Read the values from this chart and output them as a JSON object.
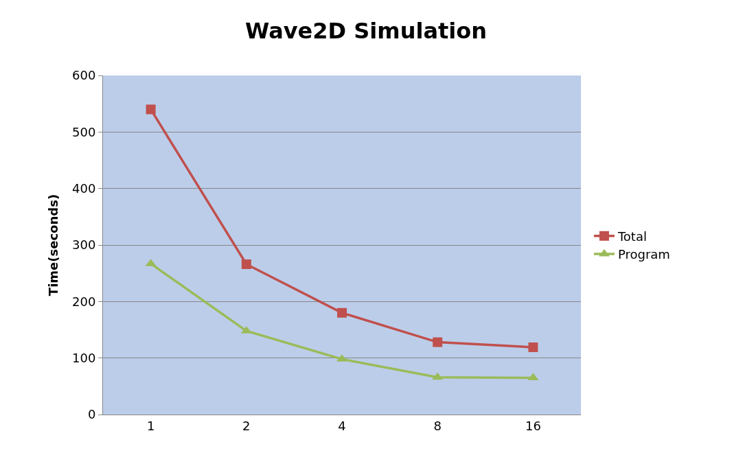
{
  "chart_data": {
    "type": "line",
    "title": "Wave2D Simulation",
    "ylabel": "Time(seconds)",
    "categories": [
      "1",
      "2",
      "4",
      "8",
      "16"
    ],
    "series": [
      {
        "name": "Total",
        "color": "#c0504d",
        "marker": "square",
        "values": [
          540,
          266,
          180,
          128,
          119
        ]
      },
      {
        "name": "Program",
        "color": "#9bbb59",
        "marker": "triangle",
        "values": [
          267,
          148,
          98,
          66,
          65
        ]
      }
    ],
    "ylim": [
      0,
      600
    ],
    "yticks": [
      0,
      100,
      200,
      300,
      400,
      500,
      600
    ],
    "grid": "y",
    "legend": "right"
  }
}
